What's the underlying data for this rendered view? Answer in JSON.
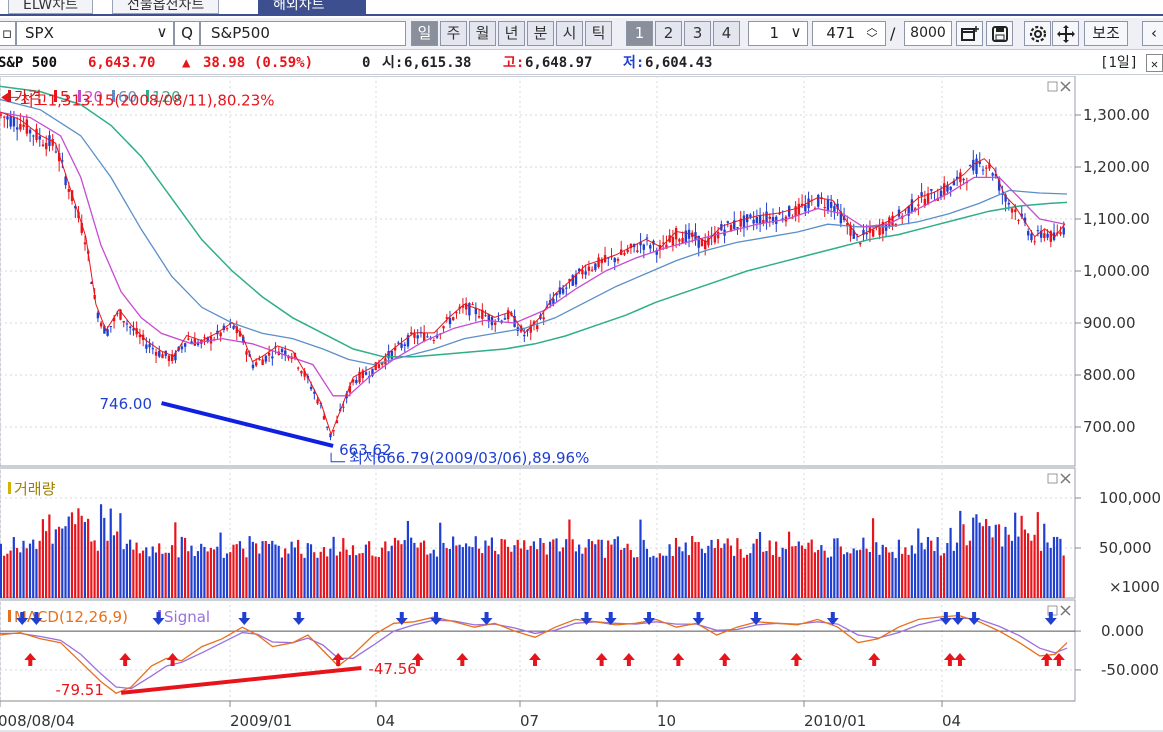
{
  "tabs": [
    "ELW차트",
    "선물옵션차트",
    "해외차트"
  ],
  "toolbar": {
    "symbol_code": "SPX",
    "symbol_name": "S&P500",
    "periods": [
      "일",
      "주",
      "월",
      "년",
      "분",
      "시",
      "틱"
    ],
    "n_buttons": [
      "1",
      "2",
      "3",
      "4"
    ],
    "interval": "1",
    "count": "471",
    "total_prefix": "/",
    "total": "8000",
    "assist": "보조"
  },
  "quote": {
    "name": "S&P 500",
    "price": "6,643.70",
    "change_sym": "▲",
    "change": "38.98",
    "change_pct": "(0.59%)",
    "volume": "0",
    "open_label": "시:",
    "open": "6,615.38",
    "high_label": "고:",
    "high": "6,648.97",
    "low_label": "저:",
    "low": "6,604.43",
    "period": "[1일]",
    "close": "✕"
  },
  "colors": {
    "up": "#e8141b",
    "down": "#1f3fd1",
    "price": "#cc1b1b",
    "ma5": "#e8141b",
    "ma20": "#c74bd1",
    "ma60": "#5b8fc9",
    "ma120": "#2fae8a",
    "macd": "#e6701c",
    "signal": "#9a6fe0",
    "blue_line": "#1020e0",
    "red_line": "#e8141b"
  },
  "chart_data": {
    "type": "candlestick",
    "price_panel": {
      "legend": [
        {
          "label": "가격",
          "color": "#cc1b1b"
        },
        {
          "label": "5",
          "color": "#e8141b"
        },
        {
          "label": "20",
          "color": "#c74bd1"
        },
        {
          "label": "60",
          "color": "#5b8fc9"
        },
        {
          "label": "120",
          "color": "#2fae8a"
        }
      ],
      "ylim": [
        625,
        1375
      ],
      "yticks": [
        {
          "v": 1300,
          "label": "1,300.00"
        },
        {
          "v": 1200,
          "label": "1,200.00"
        },
        {
          "v": 1100,
          "label": "1,100.00"
        },
        {
          "v": 1000,
          "label": "1,000.00"
        },
        {
          "v": 900,
          "label": "900.00"
        },
        {
          "v": 800,
          "label": "800.00"
        },
        {
          "v": 700,
          "label": "700.00"
        }
      ],
      "close_path": [
        [
          0,
          1300
        ],
        [
          20,
          1285
        ],
        [
          40,
          1255
        ],
        [
          55,
          1240
        ],
        [
          70,
          1150
        ],
        [
          85,
          1060
        ],
        [
          95,
          930
        ],
        [
          105,
          880
        ],
        [
          118,
          920
        ],
        [
          130,
          890
        ],
        [
          145,
          860
        ],
        [
          160,
          840
        ],
        [
          172,
          830
        ],
        [
          185,
          870
        ],
        [
          200,
          860
        ],
        [
          215,
          875
        ],
        [
          230,
          895
        ],
        [
          240,
          870
        ],
        [
          250,
          820
        ],
        [
          260,
          830
        ],
        [
          275,
          850
        ],
        [
          290,
          840
        ],
        [
          305,
          790
        ],
        [
          318,
          740
        ],
        [
          328,
          680
        ],
        [
          338,
          730
        ],
        [
          350,
          790
        ],
        [
          370,
          810
        ],
        [
          390,
          845
        ],
        [
          410,
          875
        ],
        [
          430,
          875
        ],
        [
          445,
          905
        ],
        [
          460,
          930
        ],
        [
          475,
          920
        ],
        [
          490,
          905
        ],
        [
          505,
          915
        ],
        [
          520,
          875
        ],
        [
          535,
          905
        ],
        [
          550,
          950
        ],
        [
          565,
          975
        ],
        [
          580,
          1005
        ],
        [
          595,
          1015
        ],
        [
          610,
          1025
        ],
        [
          625,
          1040
        ],
        [
          640,
          1055
        ],
        [
          655,
          1040
        ],
        [
          670,
          1070
        ],
        [
          685,
          1065
        ],
        [
          700,
          1050
        ],
        [
          715,
          1080
        ],
        [
          730,
          1090
        ],
        [
          750,
          1100
        ],
        [
          770,
          1105
        ],
        [
          790,
          1115
        ],
        [
          810,
          1135
        ],
        [
          825,
          1130
        ],
        [
          835,
          1100
        ],
        [
          850,
          1060
        ],
        [
          865,
          1075
        ],
        [
          880,
          1090
        ],
        [
          895,
          1110
        ],
        [
          910,
          1135
        ],
        [
          925,
          1145
        ],
        [
          940,
          1160
        ],
        [
          955,
          1180
        ],
        [
          965,
          1200
        ],
        [
          975,
          1210
        ],
        [
          985,
          1190
        ],
        [
          995,
          1140
        ],
        [
          1005,
          1120
        ],
        [
          1015,
          1090
        ],
        [
          1025,
          1060
        ],
        [
          1035,
          1075
        ],
        [
          1045,
          1060
        ],
        [
          1055,
          1085
        ]
      ],
      "ma20_path": [
        [
          0,
          1305
        ],
        [
          30,
          1295
        ],
        [
          60,
          1260
        ],
        [
          80,
          1180
        ],
        [
          100,
          1050
        ],
        [
          120,
          960
        ],
        [
          140,
          910
        ],
        [
          160,
          880
        ],
        [
          190,
          860
        ],
        [
          220,
          870
        ],
        [
          250,
          860
        ],
        [
          280,
          840
        ],
        [
          310,
          820
        ],
        [
          330,
          760
        ],
        [
          345,
          760
        ],
        [
          365,
          795
        ],
        [
          390,
          830
        ],
        [
          420,
          865
        ],
        [
          450,
          890
        ],
        [
          480,
          905
        ],
        [
          510,
          900
        ],
        [
          540,
          925
        ],
        [
          570,
          965
        ],
        [
          600,
          1000
        ],
        [
          630,
          1025
        ],
        [
          660,
          1045
        ],
        [
          690,
          1060
        ],
        [
          720,
          1075
        ],
        [
          750,
          1090
        ],
        [
          780,
          1100
        ],
        [
          810,
          1120
        ],
        [
          835,
          1110
        ],
        [
          855,
          1085
        ],
        [
          880,
          1090
        ],
        [
          910,
          1120
        ],
        [
          940,
          1150
        ],
        [
          965,
          1180
        ],
        [
          990,
          1180
        ],
        [
          1010,
          1140
        ],
        [
          1030,
          1100
        ],
        [
          1055,
          1090
        ]
      ],
      "ma60_path": [
        [
          0,
          1330
        ],
        [
          40,
          1310
        ],
        [
          80,
          1260
        ],
        [
          110,
          1180
        ],
        [
          140,
          1080
        ],
        [
          170,
          990
        ],
        [
          200,
          930
        ],
        [
          230,
          900
        ],
        [
          260,
          880
        ],
        [
          290,
          870
        ],
        [
          320,
          850
        ],
        [
          345,
          830
        ],
        [
          370,
          820
        ],
        [
          400,
          835
        ],
        [
          430,
          850
        ],
        [
          460,
          870
        ],
        [
          490,
          880
        ],
        [
          520,
          890
        ],
        [
          550,
          910
        ],
        [
          580,
          940
        ],
        [
          610,
          970
        ],
        [
          640,
          995
        ],
        [
          670,
          1020
        ],
        [
          700,
          1040
        ],
        [
          730,
          1055
        ],
        [
          760,
          1065
        ],
        [
          790,
          1075
        ],
        [
          820,
          1090
        ],
        [
          850,
          1085
        ],
        [
          880,
          1085
        ],
        [
          910,
          1095
        ],
        [
          940,
          1110
        ],
        [
          970,
          1130
        ],
        [
          1000,
          1155
        ],
        [
          1030,
          1150
        ],
        [
          1057,
          1148
        ]
      ],
      "ma120_path": [
        [
          0,
          1355
        ],
        [
          40,
          1345
        ],
        [
          80,
          1320
        ],
        [
          110,
          1280
        ],
        [
          140,
          1220
        ],
        [
          170,
          1140
        ],
        [
          200,
          1060
        ],
        [
          230,
          1000
        ],
        [
          260,
          950
        ],
        [
          290,
          910
        ],
        [
          320,
          880
        ],
        [
          350,
          850
        ],
        [
          380,
          835
        ],
        [
          410,
          835
        ],
        [
          440,
          840
        ],
        [
          470,
          845
        ],
        [
          500,
          850
        ],
        [
          530,
          860
        ],
        [
          560,
          875
        ],
        [
          590,
          895
        ],
        [
          620,
          915
        ],
        [
          650,
          940
        ],
        [
          680,
          960
        ],
        [
          710,
          980
        ],
        [
          740,
          1000
        ],
        [
          770,
          1015
        ],
        [
          800,
          1030
        ],
        [
          830,
          1045
        ],
        [
          860,
          1060
        ],
        [
          890,
          1070
        ],
        [
          920,
          1085
        ],
        [
          950,
          1100
        ],
        [
          980,
          1115
        ],
        [
          1010,
          1125
        ],
        [
          1040,
          1130
        ],
        [
          1057,
          1132
        ]
      ],
      "annotations": [
        {
          "text": "최고1,313.15(2008/08/11),80.23%",
          "x": 0,
          "y": 1330,
          "color": "#e8141b"
        },
        {
          "text": "746.00",
          "x": 160,
          "y": 746,
          "color": "#1f3fd1"
        },
        {
          "text": "663.62",
          "x": 330,
          "y": 663.62,
          "color": "#1f3fd1"
        },
        {
          "text": "최저666.79(2009/03/06),89.96%",
          "x": 330,
          "y": 635,
          "color": "#1f3fd1"
        }
      ],
      "trendline": [
        [
          160,
          746
        ],
        [
          330,
          663.62
        ]
      ]
    },
    "volume_panel": {
      "legend": "거래량",
      "unit_label": "×1000",
      "yticks": [
        {
          "v": 100000,
          "label": "100,000"
        },
        {
          "v": 50000,
          "label": "50,000"
        }
      ],
      "ylim": [
        0,
        130000
      ]
    },
    "macd_panel": {
      "legend": [
        {
          "label": "MACD(12,26,9)",
          "color": "#e6701c"
        },
        {
          "label": "Signal",
          "color": "#9a6fe0"
        }
      ],
      "ylim": [
        -90,
        40
      ],
      "yticks": [
        {
          "v": 0,
          "label": "0.000"
        },
        {
          "v": -50,
          "label": "-50.000"
        }
      ],
      "macd_path": [
        [
          0,
          -5
        ],
        [
          20,
          -2
        ],
        [
          40,
          -10
        ],
        [
          60,
          -15
        ],
        [
          80,
          -40
        ],
        [
          100,
          -65
        ],
        [
          115,
          -80
        ],
        [
          130,
          -72
        ],
        [
          150,
          -45
        ],
        [
          165,
          -35
        ],
        [
          180,
          -38
        ],
        [
          200,
          -20
        ],
        [
          220,
          -10
        ],
        [
          240,
          5
        ],
        [
          255,
          -5
        ],
        [
          270,
          -20
        ],
        [
          290,
          -15
        ],
        [
          305,
          -5
        ],
        [
          320,
          -25
        ],
        [
          335,
          -45
        ],
        [
          350,
          -30
        ],
        [
          370,
          -5
        ],
        [
          390,
          10
        ],
        [
          410,
          12
        ],
        [
          430,
          18
        ],
        [
          450,
          12
        ],
        [
          470,
          5
        ],
        [
          490,
          10
        ],
        [
          510,
          0
        ],
        [
          530,
          -8
        ],
        [
          550,
          5
        ],
        [
          570,
          15
        ],
        [
          590,
          12
        ],
        [
          610,
          8
        ],
        [
          630,
          10
        ],
        [
          650,
          15
        ],
        [
          670,
          5
        ],
        [
          690,
          10
        ],
        [
          710,
          -5
        ],
        [
          730,
          5
        ],
        [
          750,
          12
        ],
        [
          770,
          10
        ],
        [
          790,
          8
        ],
        [
          810,
          15
        ],
        [
          830,
          5
        ],
        [
          850,
          -15
        ],
        [
          870,
          -10
        ],
        [
          890,
          5
        ],
        [
          910,
          15
        ],
        [
          930,
          18
        ],
        [
          950,
          20
        ],
        [
          970,
          12
        ],
        [
          990,
          0
        ],
        [
          1010,
          -15
        ],
        [
          1030,
          -32
        ],
        [
          1045,
          -30
        ],
        [
          1057,
          -15
        ]
      ],
      "signal_path": [
        [
          0,
          -3
        ],
        [
          20,
          -3
        ],
        [
          40,
          -7
        ],
        [
          60,
          -12
        ],
        [
          80,
          -30
        ],
        [
          100,
          -55
        ],
        [
          115,
          -72
        ],
        [
          130,
          -74
        ],
        [
          150,
          -58
        ],
        [
          165,
          -45
        ],
        [
          180,
          -40
        ],
        [
          200,
          -28
        ],
        [
          220,
          -15
        ],
        [
          240,
          -2
        ],
        [
          255,
          -4
        ],
        [
          270,
          -14
        ],
        [
          290,
          -15
        ],
        [
          305,
          -9
        ],
        [
          320,
          -18
        ],
        [
          335,
          -35
        ],
        [
          350,
          -35
        ],
        [
          370,
          -18
        ],
        [
          390,
          0
        ],
        [
          410,
          8
        ],
        [
          430,
          14
        ],
        [
          450,
          13
        ],
        [
          470,
          8
        ],
        [
          490,
          9
        ],
        [
          510,
          4
        ],
        [
          530,
          -3
        ],
        [
          550,
          1
        ],
        [
          570,
          10
        ],
        [
          590,
          12
        ],
        [
          610,
          10
        ],
        [
          630,
          9
        ],
        [
          650,
          12
        ],
        [
          670,
          9
        ],
        [
          690,
          9
        ],
        [
          710,
          1
        ],
        [
          730,
          2
        ],
        [
          750,
          8
        ],
        [
          770,
          10
        ],
        [
          790,
          9
        ],
        [
          810,
          12
        ],
        [
          830,
          9
        ],
        [
          850,
          -5
        ],
        [
          870,
          -9
        ],
        [
          890,
          -2
        ],
        [
          910,
          8
        ],
        [
          930,
          14
        ],
        [
          950,
          17
        ],
        [
          970,
          15
        ],
        [
          990,
          6
        ],
        [
          1010,
          -6
        ],
        [
          1030,
          -22
        ],
        [
          1045,
          -28
        ],
        [
          1057,
          -22
        ]
      ],
      "annotations": [
        {
          "text": "-79.51",
          "x": 55,
          "y": -79.51,
          "color": "#e8141b"
        },
        {
          "text": "-47.56",
          "x": 365,
          "y": -47.56,
          "color": "#e8141b"
        }
      ],
      "trendline": [
        [
          120,
          -79.51
        ],
        [
          358,
          -47.56
        ]
      ],
      "down_arrows": [
        22,
        36,
        157,
        242,
        296,
        398,
        432,
        482,
        581,
        605,
        643,
        692,
        749,
        825,
        937,
        949,
        965,
        1041
      ],
      "up_arrows": [
        30,
        124,
        171,
        335,
        414,
        458,
        530,
        596,
        623,
        672,
        718,
        789,
        866,
        941,
        951,
        1037,
        1049
      ]
    },
    "x_axis": [
      "008/08/04",
      "2009/01",
      "04",
      "07",
      "10",
      "2010/01",
      "04"
    ]
  }
}
